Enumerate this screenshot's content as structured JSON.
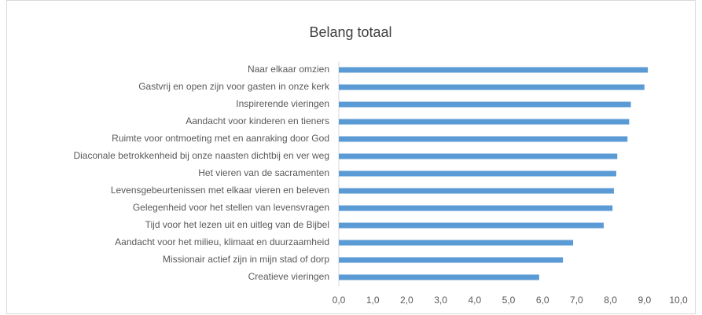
{
  "chart_data": {
    "type": "bar",
    "orientation": "horizontal",
    "title": "Belang totaal",
    "categories": [
      "Naar elkaar omzien",
      "Gastvrij en open zijn voor gasten in onze kerk",
      "Inspirerende vieringen",
      "Aandacht voor kinderen en tieners",
      "Ruimte voor ontmoeting met en aanraking door God",
      "Diaconale betrokkenheid bij onze naasten dichtbij en ver weg",
      "Het vieren van de sacramenten",
      "Levensgebeurtenissen met elkaar vieren en beleven",
      "Gelegenheid voor het stellen van levensvragen",
      "Tijd voor het lezen uit en uitleg van de Bijbel",
      "Aandacht voor het milieu, klimaat en duurzaamheid",
      "Missionair actief zijn in mijn stad of dorp",
      "Creatieve vieringen"
    ],
    "values": [
      9.1,
      9.0,
      8.6,
      8.55,
      8.5,
      8.2,
      8.17,
      8.1,
      8.06,
      7.8,
      6.9,
      6.6,
      5.9
    ],
    "color": "#5b9bd5",
    "xlim": [
      0,
      10
    ],
    "xticks": [
      {
        "value": 0,
        "label": "0,0"
      },
      {
        "value": 1,
        "label": "1,0"
      },
      {
        "value": 2,
        "label": "2,0"
      },
      {
        "value": 3,
        "label": "3,0"
      },
      {
        "value": 4,
        "label": "4,0"
      },
      {
        "value": 5,
        "label": "5,0"
      },
      {
        "value": 6,
        "label": "6,0"
      },
      {
        "value": 7,
        "label": "7,0"
      },
      {
        "value": 8,
        "label": "8,0"
      },
      {
        "value": 9,
        "label": "9,0"
      },
      {
        "value": 10,
        "label": "10,0"
      }
    ],
    "grid": false
  }
}
